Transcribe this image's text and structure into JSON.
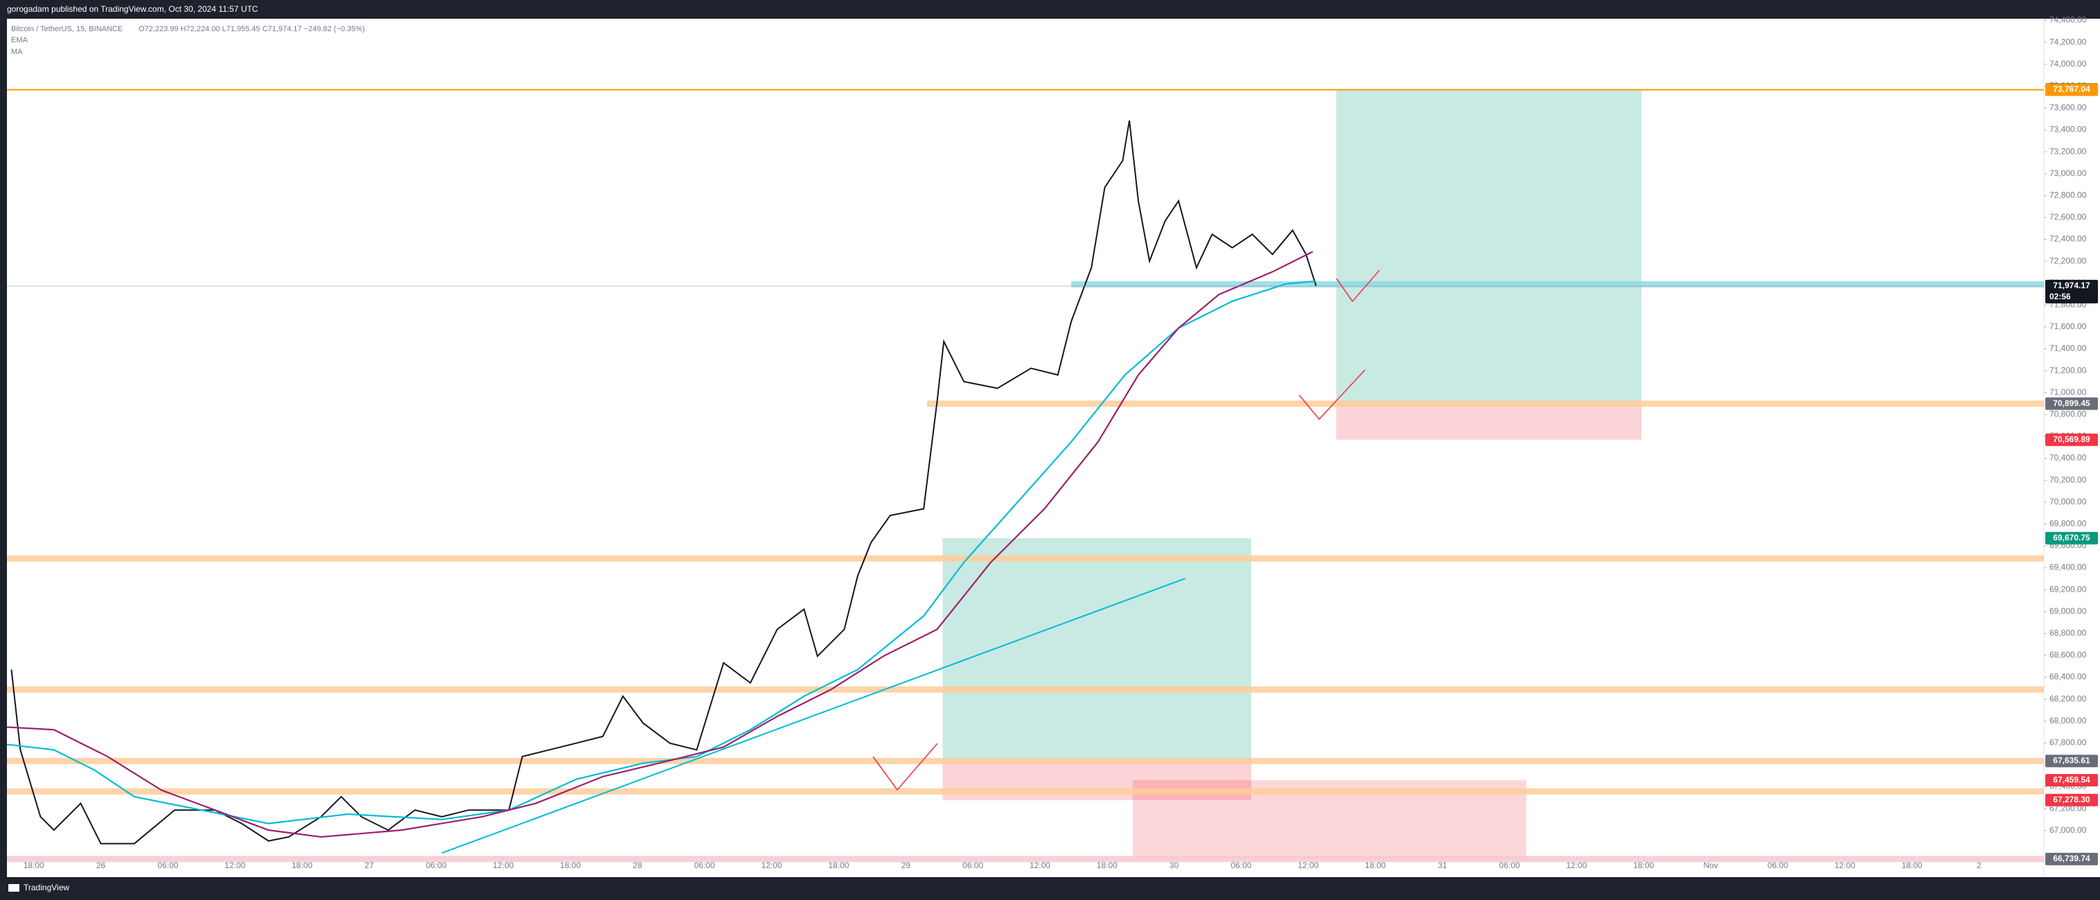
{
  "header": {
    "author_line": "gorogadam published on TradingView.com, Oct 30, 2024 11:57 UTC",
    "symbol": "Bitcoin / TetherUS, 15, BINANCE",
    "ohlc": "O72,223.99 H72,224.00 L71,955.45 C71,974.17 −249.82 (−0.35%)",
    "indicators": [
      "EMA",
      "MA"
    ],
    "countdown": "02:56"
  },
  "footer": {
    "brand": "TradingView"
  },
  "chart_data": {
    "type": "line",
    "xlim": [
      -2.4,
      179.8
    ],
    "ylim": [
      66758,
      74416
    ],
    "xticks": [
      {
        "value": 0,
        "label": "18:00"
      },
      {
        "value": 6,
        "label": "26"
      },
      {
        "value": 12,
        "label": "06:00"
      },
      {
        "value": 18,
        "label": "12:00"
      },
      {
        "value": 24,
        "label": "18:00"
      },
      {
        "value": 30,
        "label": "27"
      },
      {
        "value": 36,
        "label": "06:00"
      },
      {
        "value": 42,
        "label": "12:00"
      },
      {
        "value": 48,
        "label": "18:00"
      },
      {
        "value": 54,
        "label": "28"
      },
      {
        "value": 60,
        "label": "06:00"
      },
      {
        "value": 66,
        "label": "12:00"
      },
      {
        "value": 72,
        "label": "18:00"
      },
      {
        "value": 78,
        "label": "29"
      },
      {
        "value": 84,
        "label": "06:00"
      },
      {
        "value": 90,
        "label": "12:00"
      },
      {
        "value": 96,
        "label": "18:00"
      },
      {
        "value": 102,
        "label": "30"
      },
      {
        "value": 108,
        "label": "06:00"
      },
      {
        "value": 114,
        "label": "12:00"
      },
      {
        "value": 120,
        "label": "18:00"
      },
      {
        "value": 126,
        "label": "31"
      },
      {
        "value": 132,
        "label": "06:00"
      },
      {
        "value": 138,
        "label": "12:00"
      },
      {
        "value": 144,
        "label": "18:00"
      },
      {
        "value": 150,
        "label": "Nov"
      },
      {
        "value": 156,
        "label": "06:00"
      },
      {
        "value": 162,
        "label": "12:00"
      },
      {
        "value": 168,
        "label": "18:00"
      },
      {
        "value": 174,
        "label": "2"
      }
    ],
    "yticks": [
      {
        "value": 67000,
        "label": "67,000.00"
      },
      {
        "value": 67200,
        "label": "67,200.00"
      },
      {
        "value": 67400,
        "label": "67,400.00"
      },
      {
        "value": 67600,
        "label": "67,600.00"
      },
      {
        "value": 67800,
        "label": "67,800.00"
      },
      {
        "value": 68000,
        "label": "68,000.00"
      },
      {
        "value": 68200,
        "label": "68,200.00"
      },
      {
        "value": 68400,
        "label": "68,400.00"
      },
      {
        "value": 68600,
        "label": "68,600.00"
      },
      {
        "value": 68800,
        "label": "68,800.00"
      },
      {
        "value": 69000,
        "label": "69,000.00"
      },
      {
        "value": 69200,
        "label": "69,200.00"
      },
      {
        "value": 69400,
        "label": "69,400.00"
      },
      {
        "value": 69600,
        "label": "69,600.00"
      },
      {
        "value": 69800,
        "label": "69,800.00"
      },
      {
        "value": 70000,
        "label": "70,000.00"
      },
      {
        "value": 70200,
        "label": "70,200.00"
      },
      {
        "value": 70400,
        "label": "70,400.00"
      },
      {
        "value": 70600,
        "label": "70,600.00"
      },
      {
        "value": 70800,
        "label": "70,800.00"
      },
      {
        "value": 71000,
        "label": "71,000.00"
      },
      {
        "value": 71200,
        "label": "71,200.00"
      },
      {
        "value": 71400,
        "label": "71,400.00"
      },
      {
        "value": 71600,
        "label": "71,600.00"
      },
      {
        "value": 71800,
        "label": "71,800.00"
      },
      {
        "value": 72000,
        "label": "72,000.00"
      },
      {
        "value": 72200,
        "label": "72,200.00"
      },
      {
        "value": 72400,
        "label": "72,400.00"
      },
      {
        "value": 72600,
        "label": "72,600.00"
      },
      {
        "value": 72800,
        "label": "72,800.00"
      },
      {
        "value": 73000,
        "label": "73,000.00"
      },
      {
        "value": 73200,
        "label": "73,200.00"
      },
      {
        "value": 73400,
        "label": "73,400.00"
      },
      {
        "value": 73600,
        "label": "73,600.00"
      },
      {
        "value": 73800,
        "label": "73,800.00"
      },
      {
        "value": 74000,
        "label": "74,000.00"
      },
      {
        "value": 74200,
        "label": "74,200.00"
      },
      {
        "value": 74400,
        "label": "74,400.00"
      }
    ],
    "series": [
      {
        "color": "#131722",
        "x": [
          -2.0,
          -1.2,
          0.6,
          1.8,
          4.2,
          6.0,
          9.0,
          12.6,
          16.2,
          18.6,
          21.0,
          22.8,
          25.7,
          27.5,
          29.3,
          31.7,
          34.1,
          36.5,
          38.9,
          42.5,
          43.7,
          46.1,
          48.5,
          50.9,
          52.7,
          54.5,
          56.9,
          59.3,
          61.7,
          64.1,
          66.5,
          68.9,
          70.1,
          72.5,
          73.7,
          74.9,
          76.6,
          79.6,
          80.8,
          81.4,
          83.2,
          86.2,
          89.2,
          91.6,
          92.8,
          94.6,
          95.8,
          97.4,
          98.0,
          98.8,
          99.8,
          101.2,
          102.4,
          104.0,
          105.4,
          107.2,
          109.0,
          110.8,
          112.6,
          113.8,
          114.7
        ],
        "values": [
          68471,
          67737,
          67126,
          67004,
          67248,
          66881,
          66881,
          67187,
          67187,
          67064,
          66905,
          66942,
          67126,
          67309,
          67126,
          67004,
          67187,
          67126,
          67187,
          67187,
          67676,
          67737,
          67798,
          67860,
          68227,
          67982,
          67798,
          67737,
          68532,
          68349,
          68838,
          69022,
          68593,
          68838,
          69327,
          69633,
          69878,
          69939,
          70918,
          71468,
          71101,
          71040,
          71223,
          71162,
          71651,
          72141,
          72875,
          73119,
          73486,
          72752,
          72202,
          72569,
          72752,
          72141,
          72447,
          72324,
          72447,
          72263,
          72483,
          72263,
          71974.17
        ]
      },
      {
        "name": "EMA",
        "color": "#00bcd4",
        "x": [
          -2.4,
          1.8,
          5.4,
          9.0,
          15.0,
          21.0,
          28.1,
          36.5,
          42.5,
          48.5,
          54.5,
          59.3,
          64.1,
          68.9,
          73.7,
          79.6,
          83.2,
          88.0,
          92.8,
          97.6,
          102.4,
          107.2,
          112.0,
          114.7
        ],
        "values": [
          67787,
          67737,
          67554,
          67309,
          67187,
          67064,
          67150,
          67101,
          67187,
          67468,
          67615,
          67676,
          67921,
          68227,
          68471,
          68960,
          69450,
          70000,
          70551,
          71162,
          71590,
          71835,
          71994,
          72019
        ]
      },
      {
        "name": "MA",
        "color": "#9c1f6b",
        "x": [
          -2.4,
          1.8,
          6.6,
          11.4,
          16.2,
          21.0,
          25.7,
          32.9,
          40.1,
          44.9,
          50.9,
          56.9,
          61.7,
          66.5,
          71.3,
          76.0,
          80.8,
          85.6,
          90.4,
          95.2,
          98.8,
          102.4,
          106.0,
          110.8,
          114.4
        ],
        "values": [
          67945,
          67921,
          67676,
          67370,
          67187,
          67004,
          66942,
          67004,
          67126,
          67248,
          67493,
          67640,
          67762,
          68043,
          68288,
          68593,
          68838,
          69450,
          69939,
          70551,
          71162,
          71590,
          71896,
          72104,
          72288
        ]
      }
    ],
    "levels": [
      {
        "value": 73767.04,
        "x_start": -2.4,
        "color": "#ff9800",
        "style": "line"
      },
      {
        "value": 70899.45,
        "x_start": 79.9,
        "color": "#ffcc99",
        "style": "band"
      },
      {
        "value": 69486,
        "x_start": -2.4,
        "color": "#ffcc99",
        "style": "band"
      },
      {
        "value": 68288,
        "x_start": -2.4,
        "color": "#ffcc99",
        "style": "band"
      },
      {
        "value": 67635.61,
        "x_start": -2.4,
        "color": "#ffcc99",
        "style": "band"
      },
      {
        "value": 67358,
        "x_start": -2.4,
        "color": "#ffcc99",
        "style": "band"
      },
      {
        "value": 66739.74,
        "x_start": -2.4,
        "color": "#f8c8d0",
        "style": "band"
      },
      {
        "value": 71990,
        "x_start": 92.8,
        "color": "#8fdbe6",
        "style": "band"
      }
    ],
    "trendline": {
      "x": [
        36.5,
        103.0
      ],
      "values": [
        66795,
        69303
      ],
      "color": "#00bcd4"
    },
    "positions": [
      {
        "x0": 116.5,
        "x1": 143.8,
        "target": 73770.45,
        "entry": 70899.45,
        "stop": 70569.89
      },
      {
        "x0": 81.3,
        "x1": 108.9,
        "target": 69670.75,
        "entry": 67635.61,
        "stop": 67278.3
      }
    ],
    "zones": [
      {
        "x0": 98.3,
        "x1": 133.5,
        "top": 67459.54,
        "bottom": 66739.74,
        "color": "rgba(242,54,69,0.2)"
      }
    ],
    "price_labels": [
      {
        "value": 73770.45,
        "label": "73,770.45",
        "color": "#089981"
      },
      {
        "value": 73767.04,
        "label": "73,767.04",
        "color": "#ff9800"
      },
      {
        "value": 71974.17,
        "label": "71,974.17",
        "color": "#131722"
      },
      {
        "value": 70899.45,
        "label": "70,899.45",
        "color": "#6a6d78"
      },
      {
        "value": 70569.89,
        "label": "70,569.89",
        "color": "#f23645"
      },
      {
        "value": 69670.75,
        "label": "69,670.75",
        "color": "#089981"
      },
      {
        "value": 67635.61,
        "label": "67,635.61",
        "color": "#6a6d78"
      },
      {
        "value": 67459.54,
        "label": "67,459.54",
        "color": "#f23645"
      },
      {
        "value": 67278.3,
        "label": "67,278.30",
        "color": "#f23645"
      },
      {
        "value": 66739.74,
        "label": "66,739.74",
        "color": "#6a6d78"
      }
    ]
  }
}
